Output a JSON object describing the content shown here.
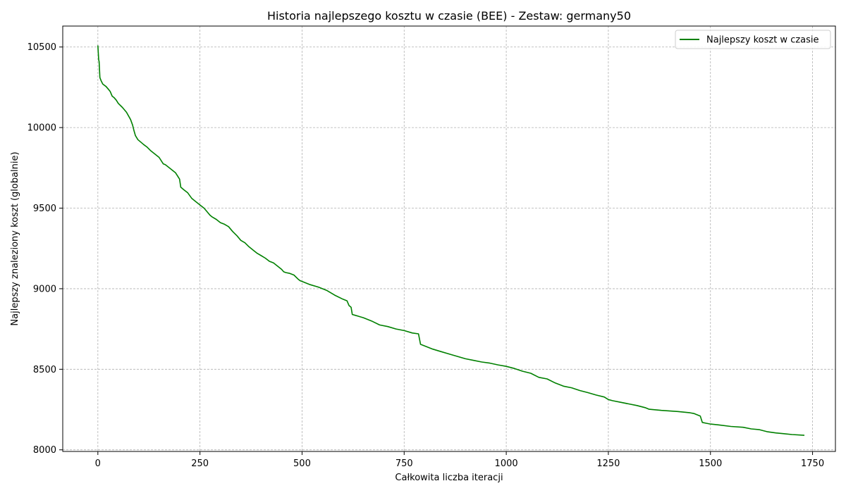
{
  "chart_data": {
    "type": "line",
    "title": "Historia najlepszego kosztu w czasie (BEE) - Zestaw: germany50",
    "xlabel": "Całkowita liczba iteracji",
    "ylabel": "Najlepszy znaleziony koszt (globalnie)",
    "xlim": [
      -86,
      1806
    ],
    "ylim": [
      7990,
      10630
    ],
    "xticks": [
      0,
      250,
      500,
      750,
      1000,
      1250,
      1500,
      1750
    ],
    "yticks": [
      8000,
      8500,
      9000,
      9500,
      10000,
      10500
    ],
    "grid": true,
    "legend_position": "top-right",
    "colors": {
      "series": "#008000",
      "grid": "#b0b0b0"
    },
    "series": [
      {
        "name": "Najlepszy koszt w czasie",
        "color": "#008000",
        "x": [
          0,
          2,
          3,
          5,
          8,
          12,
          20,
          25,
          30,
          35,
          40,
          45,
          50,
          60,
          70,
          80,
          85,
          88,
          92,
          98,
          105,
          112,
          120,
          130,
          140,
          150,
          160,
          165,
          170,
          180,
          190,
          200,
          203,
          210,
          220,
          230,
          240,
          250,
          260,
          270,
          275,
          280,
          290,
          300,
          310,
          320,
          330,
          340,
          350,
          360,
          370,
          380,
          390,
          400,
          410,
          420,
          430,
          440,
          450,
          455,
          460,
          470,
          480,
          490,
          495,
          500,
          520,
          540,
          560,
          580,
          600,
          610,
          615,
          620,
          623,
          630,
          650,
          670,
          690,
          710,
          730,
          750,
          770,
          785,
          790,
          800,
          820,
          840,
          860,
          880,
          900,
          920,
          940,
          960,
          980,
          1000,
          1020,
          1040,
          1060,
          1080,
          1100,
          1120,
          1140,
          1160,
          1180,
          1200,
          1220,
          1240,
          1250,
          1260,
          1280,
          1300,
          1320,
          1340,
          1350,
          1380,
          1420,
          1450,
          1460,
          1475,
          1480,
          1490,
          1500,
          1520,
          1550,
          1580,
          1600,
          1620,
          1640,
          1660,
          1680,
          1700,
          1730
        ],
        "values": [
          10510,
          10420,
          10410,
          10310,
          10290,
          10270,
          10255,
          10240,
          10225,
          10195,
          10185,
          10170,
          10150,
          10125,
          10095,
          10050,
          10015,
          9985,
          9950,
          9925,
          9910,
          9895,
          9880,
          9855,
          9835,
          9815,
          9775,
          9770,
          9760,
          9740,
          9720,
          9680,
          9630,
          9615,
          9595,
          9560,
          9540,
          9520,
          9500,
          9470,
          9455,
          9445,
          9430,
          9410,
          9400,
          9385,
          9355,
          9330,
          9300,
          9285,
          9260,
          9240,
          9220,
          9205,
          9190,
          9170,
          9160,
          9140,
          9120,
          9105,
          9100,
          9095,
          9085,
          9060,
          9050,
          9045,
          9025,
          9010,
          8990,
          8960,
          8935,
          8925,
          8895,
          8885,
          8840,
          8835,
          8820,
          8800,
          8775,
          8765,
          8750,
          8740,
          8725,
          8720,
          8655,
          8645,
          8625,
          8610,
          8595,
          8580,
          8565,
          8555,
          8545,
          8538,
          8527,
          8518,
          8505,
          8488,
          8475,
          8450,
          8440,
          8415,
          8395,
          8385,
          8368,
          8355,
          8340,
          8328,
          8312,
          8305,
          8295,
          8285,
          8275,
          8262,
          8252,
          8245,
          8238,
          8230,
          8225,
          8210,
          8170,
          8165,
          8160,
          8155,
          8145,
          8140,
          8130,
          8125,
          8112,
          8105,
          8100,
          8095,
          8090
        ]
      }
    ]
  }
}
